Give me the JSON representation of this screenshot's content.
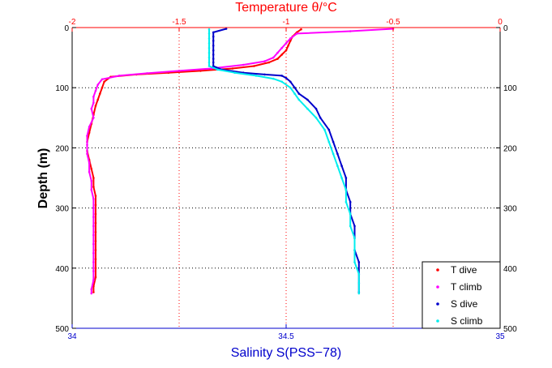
{
  "chart_data": {
    "type": "scatter",
    "top_axis": {
      "label": "Temperature θ/°C",
      "range": [
        -2,
        0
      ],
      "ticks": [
        "-2",
        "-1.5",
        "-1",
        "-0.5",
        "0"
      ],
      "color": "#ff0000"
    },
    "bottom_axis": {
      "label": "Salinity S(PSS−78)",
      "range": [
        34,
        35
      ],
      "ticks": [
        "34",
        "34.5",
        "35"
      ],
      "color": "#0000cc"
    },
    "y_axis": {
      "label": "Depth (m)",
      "range": [
        0,
        500
      ],
      "reversed": true,
      "ticks": [
        "0",
        "100",
        "200",
        "300",
        "400",
        "500"
      ],
      "color": "#000000"
    },
    "grid": true,
    "legend_position": "bottom-right",
    "series": [
      {
        "name": "T dive",
        "axis": "top",
        "color": "#ff0000",
        "points": [
          [
            -0.93,
            3
          ],
          [
            -0.95,
            8
          ],
          [
            -0.97,
            15
          ],
          [
            -0.98,
            22
          ],
          [
            -0.99,
            30
          ],
          [
            -1.0,
            38
          ],
          [
            -1.02,
            45
          ],
          [
            -1.04,
            52
          ],
          [
            -1.08,
            58
          ],
          [
            -1.15,
            64
          ],
          [
            -1.25,
            68
          ],
          [
            -1.4,
            72
          ],
          [
            -1.55,
            75
          ],
          [
            -1.7,
            78
          ],
          [
            -1.82,
            82
          ],
          [
            -1.85,
            90
          ],
          [
            -1.86,
            100
          ],
          [
            -1.87,
            110
          ],
          [
            -1.88,
            120
          ],
          [
            -1.89,
            130
          ],
          [
            -1.9,
            145
          ],
          [
            -1.91,
            160
          ],
          [
            -1.92,
            175
          ],
          [
            -1.93,
            190
          ],
          [
            -1.93,
            205
          ],
          [
            -1.92,
            220
          ],
          [
            -1.91,
            235
          ],
          [
            -1.9,
            250
          ],
          [
            -1.9,
            265
          ],
          [
            -1.89,
            280
          ],
          [
            -1.89,
            295
          ],
          [
            -1.89,
            310
          ],
          [
            -1.89,
            325
          ],
          [
            -1.89,
            340
          ],
          [
            -1.89,
            355
          ],
          [
            -1.89,
            370
          ],
          [
            -1.89,
            385
          ],
          [
            -1.89,
            400
          ],
          [
            -1.89,
            415
          ],
          [
            -1.9,
            430
          ],
          [
            -1.9,
            440
          ]
        ]
      },
      {
        "name": "T climb",
        "axis": "top",
        "color": "#ff00ff",
        "points": [
          [
            -0.5,
            2
          ],
          [
            -0.7,
            6
          ],
          [
            -0.95,
            10
          ],
          [
            -0.98,
            18
          ],
          [
            -1.0,
            26
          ],
          [
            -1.02,
            34
          ],
          [
            -1.04,
            42
          ],
          [
            -1.06,
            50
          ],
          [
            -1.1,
            56
          ],
          [
            -1.2,
            62
          ],
          [
            -1.35,
            68
          ],
          [
            -1.5,
            72
          ],
          [
            -1.65,
            76
          ],
          [
            -1.78,
            80
          ],
          [
            -1.86,
            86
          ],
          [
            -1.88,
            95
          ],
          [
            -1.89,
            105
          ],
          [
            -1.9,
            115
          ],
          [
            -1.9,
            125
          ],
          [
            -1.91,
            135
          ],
          [
            -1.9,
            150
          ],
          [
            -1.92,
            165
          ],
          [
            -1.93,
            180
          ],
          [
            -1.93,
            195
          ],
          [
            -1.93,
            210
          ],
          [
            -1.92,
            225
          ],
          [
            -1.92,
            240
          ],
          [
            -1.91,
            255
          ],
          [
            -1.91,
            270
          ],
          [
            -1.9,
            285
          ],
          [
            -1.9,
            300
          ],
          [
            -1.9,
            315
          ],
          [
            -1.9,
            330
          ],
          [
            -1.9,
            345
          ],
          [
            -1.9,
            360
          ],
          [
            -1.9,
            375
          ],
          [
            -1.9,
            390
          ],
          [
            -1.9,
            405
          ],
          [
            -1.9,
            420
          ],
          [
            -1.91,
            435
          ],
          [
            -1.91,
            442
          ]
        ]
      },
      {
        "name": "S dive",
        "axis": "bottom",
        "color": "#0000cc",
        "points": [
          [
            34.36,
            2
          ],
          [
            34.33,
            8
          ],
          [
            34.33,
            15
          ],
          [
            34.33,
            22
          ],
          [
            34.33,
            30
          ],
          [
            34.33,
            38
          ],
          [
            34.33,
            45
          ],
          [
            34.33,
            52
          ],
          [
            34.33,
            58
          ],
          [
            34.33,
            64
          ],
          [
            34.35,
            70
          ],
          [
            34.4,
            75
          ],
          [
            34.45,
            78
          ],
          [
            34.49,
            80
          ],
          [
            34.5,
            84
          ],
          [
            34.51,
            90
          ],
          [
            34.52,
            100
          ],
          [
            34.53,
            110
          ],
          [
            34.55,
            120
          ],
          [
            34.57,
            135
          ],
          [
            34.58,
            150
          ],
          [
            34.6,
            170
          ],
          [
            34.61,
            190
          ],
          [
            34.62,
            210
          ],
          [
            34.63,
            230
          ],
          [
            34.64,
            250
          ],
          [
            34.64,
            270
          ],
          [
            34.65,
            290
          ],
          [
            34.65,
            310
          ],
          [
            34.66,
            330
          ],
          [
            34.66,
            350
          ],
          [
            34.66,
            370
          ],
          [
            34.67,
            390
          ],
          [
            34.67,
            410
          ],
          [
            34.67,
            425
          ],
          [
            34.67,
            440
          ]
        ]
      },
      {
        "name": "S climb",
        "axis": "bottom",
        "color": "#00eeee",
        "points": [
          [
            34.32,
            3
          ],
          [
            34.32,
            10
          ],
          [
            34.32,
            18
          ],
          [
            34.32,
            26
          ],
          [
            34.32,
            34
          ],
          [
            34.32,
            42
          ],
          [
            34.32,
            50
          ],
          [
            34.32,
            58
          ],
          [
            34.32,
            64
          ],
          [
            34.34,
            70
          ],
          [
            34.38,
            75
          ],
          [
            34.43,
            80
          ],
          [
            34.47,
            85
          ],
          [
            34.49,
            90
          ],
          [
            34.51,
            100
          ],
          [
            34.52,
            110
          ],
          [
            34.53,
            120
          ],
          [
            34.55,
            135
          ],
          [
            34.57,
            150
          ],
          [
            34.59,
            170
          ],
          [
            34.6,
            190
          ],
          [
            34.61,
            210
          ],
          [
            34.62,
            230
          ],
          [
            34.63,
            250
          ],
          [
            34.64,
            270
          ],
          [
            34.64,
            290
          ],
          [
            34.65,
            310
          ],
          [
            34.65,
            330
          ],
          [
            34.66,
            350
          ],
          [
            34.66,
            370
          ],
          [
            34.66,
            390
          ],
          [
            34.67,
            410
          ],
          [
            34.67,
            425
          ],
          [
            34.67,
            442
          ]
        ]
      }
    ]
  }
}
